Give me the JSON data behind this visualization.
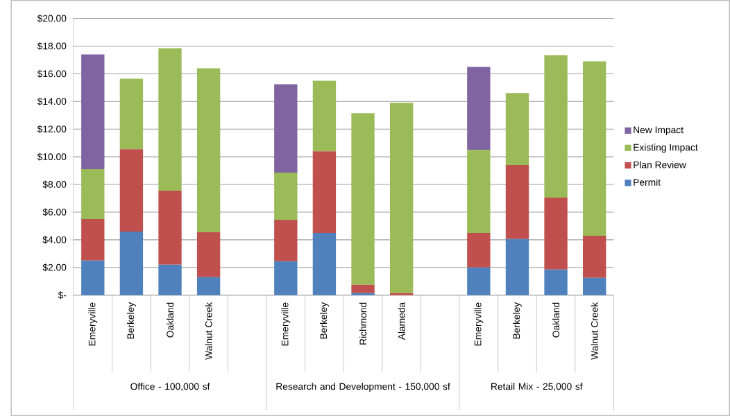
{
  "chart_data": {
    "type": "bar",
    "stacked": true,
    "categories": [
      "Emeryville",
      "Berkeley",
      "Oakland",
      "Walnut Creek",
      null,
      "Emeryville",
      "Berkeley",
      "Richmond",
      "Alameda",
      null,
      "Emeryville",
      "Berkeley",
      "Oakland",
      "Walnut Creek"
    ],
    "series": [
      {
        "name": "Permit",
        "color": "#4f81bd",
        "values": [
          2.5,
          4.6,
          2.2,
          1.3,
          null,
          2.45,
          4.5,
          0.15,
          0,
          null,
          2.0,
          4.05,
          1.85,
          1.25
        ]
      },
      {
        "name": "Plan Review",
        "color": "#c0504d",
        "values": [
          3.0,
          5.95,
          5.35,
          3.25,
          null,
          3.0,
          5.9,
          0.6,
          0.15,
          null,
          2.5,
          5.35,
          5.2,
          3.05
        ]
      },
      {
        "name": "Existing Impact",
        "color": "#9bbb59",
        "values": [
          3.6,
          5.1,
          10.3,
          11.85,
          null,
          3.4,
          5.1,
          12.4,
          13.75,
          null,
          6.0,
          5.2,
          10.3,
          12.6
        ]
      },
      {
        "name": "New Impact",
        "color": "#8064a2",
        "values": [
          8.3,
          0,
          0,
          0,
          null,
          6.4,
          0,
          0,
          0,
          null,
          6.0,
          0,
          0,
          0
        ]
      }
    ],
    "annotations": [
      "Office - 100,000 sf",
      "Research and Development  - 150,000 sf",
      "Retail Mix - 25,000 sf"
    ],
    "ylim": [
      0,
      20
    ],
    "yticks": [
      {
        "value": 0,
        "label": "$-"
      },
      {
        "value": 2,
        "label": "$2.00"
      },
      {
        "value": 4,
        "label": "$4.00"
      },
      {
        "value": 6,
        "label": "$6.00"
      },
      {
        "value": 8,
        "label": "$8.00"
      },
      {
        "value": 10,
        "label": "$10.00"
      },
      {
        "value": 12,
        "label": "$12.00"
      },
      {
        "value": 14,
        "label": "$14.00"
      },
      {
        "value": 16,
        "label": "$16.00"
      },
      {
        "value": 18,
        "label": "$18.00"
      },
      {
        "value": 20,
        "label": "$20.00"
      }
    ],
    "grid": "y",
    "legend": "right"
  }
}
